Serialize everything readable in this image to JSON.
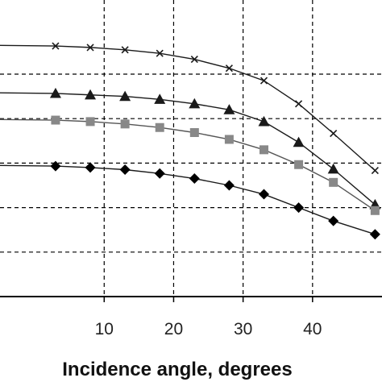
{
  "chart_data": {
    "type": "line",
    "xlabel": "Incidence angle, degrees",
    "ylabel": "",
    "title": "",
    "xlim": [
      -5,
      50
    ],
    "ylim": [
      0,
      1
    ],
    "x_ticks": [
      10,
      20,
      30,
      40
    ],
    "y_gridlines": [
      0.15,
      0.3,
      0.45,
      0.6,
      0.75
    ],
    "grid": true,
    "grid_style": "dashed",
    "legend": "none",
    "series": [
      {
        "marker": "cross",
        "color": "#1a1a1a",
        "x": [
          3,
          8,
          13,
          18,
          23,
          28,
          33,
          38,
          43,
          49
        ],
        "y": [
          0.845,
          0.84,
          0.832,
          0.82,
          0.8,
          0.77,
          0.728,
          0.65,
          0.55,
          0.425
        ]
      },
      {
        "marker": "triangle",
        "color": "#1a1a1a",
        "x": [
          3,
          8,
          13,
          18,
          23,
          28,
          33,
          38,
          43,
          49
        ],
        "y": [
          0.685,
          0.68,
          0.675,
          0.665,
          0.65,
          0.63,
          0.59,
          0.52,
          0.43,
          0.31
        ]
      },
      {
        "marker": "square",
        "color": "#888888",
        "x": [
          3,
          8,
          13,
          18,
          23,
          28,
          33,
          38,
          43,
          49
        ],
        "y": [
          0.595,
          0.59,
          0.582,
          0.57,
          0.553,
          0.53,
          0.495,
          0.445,
          0.385,
          0.29
        ]
      },
      {
        "marker": "diamond",
        "color": "#000000",
        "x": [
          3,
          8,
          13,
          18,
          23,
          28,
          33,
          38,
          43,
          49
        ],
        "y": [
          0.44,
          0.435,
          0.428,
          0.415,
          0.398,
          0.375,
          0.345,
          0.3,
          0.255,
          0.21
        ]
      }
    ]
  }
}
